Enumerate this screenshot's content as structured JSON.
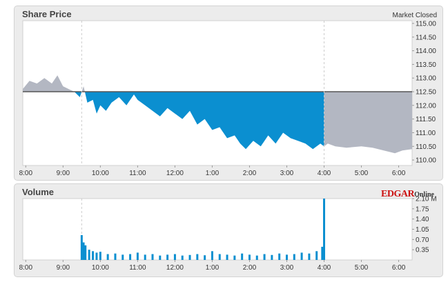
{
  "price_panel": {
    "title": "Share Price",
    "status": "Market Closed"
  },
  "volume_panel": {
    "title": "Volume",
    "logo_main": "EDGAR",
    "logo_sub": "Online"
  },
  "colors": {
    "above": "#b3b7c2",
    "below": "#0b8fd0",
    "afterhours": "#b3b7c2",
    "baseline": "#555555",
    "bars": "#0b8fd0",
    "grid": "#cccccc"
  },
  "chart_data": [
    {
      "type": "area",
      "title": "Share Price",
      "xlabel": "",
      "ylabel": "",
      "x_ticks": [
        "8:00",
        "9:00",
        "10:00",
        "11:00",
        "12:00",
        "1:00",
        "2:00",
        "3:00",
        "4:00",
        "5:00",
        "6:00"
      ],
      "y_ticks": [
        "110.00",
        "110.50",
        "111.00",
        "111.50",
        "112.00",
        "112.50",
        "113.00",
        "113.50",
        "114.00",
        "114.50",
        "115.00"
      ],
      "ylim": [
        109.8,
        115.1
      ],
      "xlim": [
        7.92,
        18.36
      ],
      "baseline": 112.5,
      "open_time": 9.5,
      "close_time": 16.0,
      "grid": "dashed vertical at open and close",
      "x": [
        7.92,
        8.1,
        8.3,
        8.5,
        8.7,
        8.85,
        9.0,
        9.15,
        9.3,
        9.45,
        9.55,
        9.65,
        9.8,
        9.9,
        10.0,
        10.15,
        10.3,
        10.5,
        10.7,
        10.9,
        11.0,
        11.2,
        11.4,
        11.6,
        11.8,
        12.0,
        12.2,
        12.4,
        12.6,
        12.8,
        13.0,
        13.2,
        13.4,
        13.6,
        13.75,
        13.9,
        14.1,
        14.3,
        14.5,
        14.7,
        14.9,
        15.1,
        15.3,
        15.5,
        15.7,
        15.9,
        16.0,
        16.1,
        16.3,
        16.6,
        17.0,
        17.3,
        17.6,
        17.9,
        18.1,
        18.36
      ],
      "y": [
        112.6,
        112.9,
        112.8,
        113.0,
        112.8,
        113.1,
        112.7,
        112.6,
        112.5,
        112.3,
        112.7,
        112.1,
        112.2,
        111.7,
        112.0,
        111.8,
        112.1,
        112.3,
        112.0,
        112.4,
        112.2,
        112.0,
        111.8,
        111.6,
        111.9,
        111.7,
        111.5,
        111.8,
        111.3,
        111.5,
        111.1,
        111.2,
        110.8,
        110.9,
        110.6,
        110.4,
        110.7,
        110.5,
        110.9,
        110.6,
        111.0,
        110.8,
        110.7,
        110.6,
        110.4,
        110.6,
        110.5,
        110.6,
        110.5,
        110.45,
        110.5,
        110.45,
        110.35,
        110.25,
        110.35,
        110.4
      ]
    },
    {
      "type": "bar",
      "title": "Volume",
      "xlabel": "",
      "ylabel": "",
      "x_ticks": [
        "8:00",
        "9:00",
        "10:00",
        "11:00",
        "12:00",
        "1:00",
        "2:00",
        "3:00",
        "4:00",
        "5:00",
        "6:00"
      ],
      "y_ticks": [
        "0.35",
        "0.70",
        "1.05",
        "1.40",
        "1.75",
        "2.10 M"
      ],
      "ylim": [
        0,
        2.1
      ],
      "xlim": [
        7.92,
        18.36
      ],
      "x": [
        9.5,
        9.55,
        9.6,
        9.7,
        9.8,
        9.9,
        10.0,
        10.2,
        10.4,
        10.6,
        10.8,
        11.0,
        11.2,
        11.4,
        11.6,
        11.8,
        12.0,
        12.2,
        12.4,
        12.6,
        12.8,
        13.0,
        13.2,
        13.4,
        13.6,
        13.8,
        14.0,
        14.2,
        14.4,
        14.6,
        14.8,
        15.0,
        15.2,
        15.4,
        15.6,
        15.8,
        15.95,
        16.0
      ],
      "values": [
        0.85,
        0.6,
        0.5,
        0.35,
        0.3,
        0.25,
        0.28,
        0.2,
        0.22,
        0.18,
        0.2,
        0.25,
        0.18,
        0.2,
        0.15,
        0.18,
        0.2,
        0.15,
        0.17,
        0.2,
        0.16,
        0.3,
        0.2,
        0.18,
        0.15,
        0.22,
        0.18,
        0.15,
        0.2,
        0.17,
        0.22,
        0.18,
        0.2,
        0.25,
        0.22,
        0.3,
        0.45,
        2.1
      ]
    }
  ]
}
